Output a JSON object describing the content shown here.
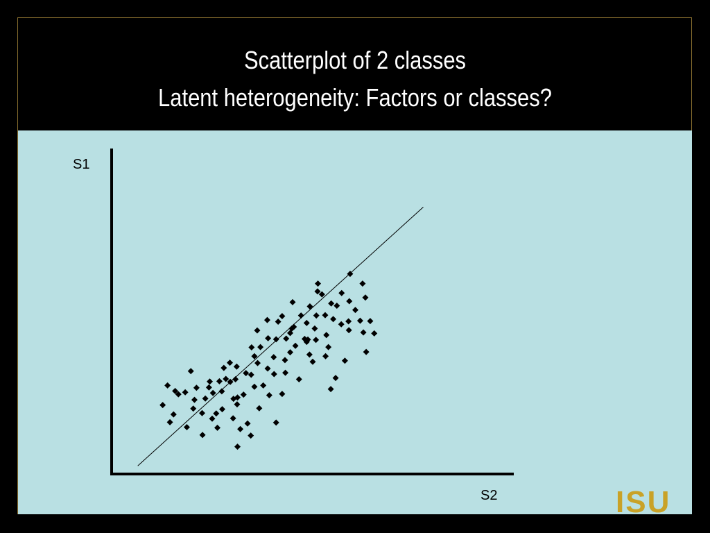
{
  "slide": {
    "title_line1": "Scatterplot of 2 classes",
    "title_line2": "Latent heterogeneity: Factors or classes?",
    "colors": {
      "background": "#000000",
      "panel": "#b9e0e3",
      "frame_border": "#8a7030",
      "title_text": "#ffffff",
      "points": "#000000"
    }
  },
  "chart_data": {
    "type": "scatter",
    "title": "",
    "xlabel": "S2",
    "ylabel": "S1",
    "xlim": [
      0,
      100
    ],
    "ylim": [
      0,
      100
    ],
    "grid": false,
    "legend": "none",
    "marker": "diamond",
    "points": [
      [
        12.7,
        21.2
      ],
      [
        14.5,
        15.9
      ],
      [
        15.4,
        18.3
      ],
      [
        13.9,
        27.2
      ],
      [
        15.8,
        25.5
      ],
      [
        16.6,
        24.5
      ],
      [
        18.7,
        14.4
      ],
      [
        18.3,
        25.1
      ],
      [
        20.6,
        22.8
      ],
      [
        20.3,
        20.1
      ],
      [
        21.1,
        26.5
      ],
      [
        19.7,
        31.6
      ],
      [
        22.5,
        18.7
      ],
      [
        24.2,
        26.6
      ],
      [
        23.3,
        23.2
      ],
      [
        22.6,
        12.0
      ],
      [
        25.2,
        24.9
      ],
      [
        24.4,
        28.4
      ],
      [
        26.0,
        18.6
      ],
      [
        25.0,
        17.0
      ],
      [
        26.8,
        28.5
      ],
      [
        26.3,
        14.2
      ],
      [
        28.4,
        29.2
      ],
      [
        27.9,
        32.6
      ],
      [
        27.5,
        19.9
      ],
      [
        29.5,
        28.3
      ],
      [
        30.2,
        17.1
      ],
      [
        30.3,
        23.1
      ],
      [
        27.4,
        25.4
      ],
      [
        31.2,
        21.4
      ],
      [
        29.4,
        34.2
      ],
      [
        31.1,
        33.0
      ],
      [
        31.3,
        8.4
      ],
      [
        30.8,
        29.1
      ],
      [
        32.0,
        13.8
      ],
      [
        32.8,
        24.4
      ],
      [
        31.3,
        23.5
      ],
      [
        33.8,
        15.5
      ],
      [
        33.4,
        31.0
      ],
      [
        34.6,
        11.8
      ],
      [
        34.7,
        30.5
      ],
      [
        35.5,
        36.2
      ],
      [
        34.8,
        38.9
      ],
      [
        35.5,
        26.8
      ],
      [
        36.2,
        44.1
      ],
      [
        36.7,
        20.2
      ],
      [
        36.3,
        34.1
      ],
      [
        37.0,
        39.0
      ],
      [
        37.7,
        27.2
      ],
      [
        38.8,
        32.4
      ],
      [
        38.9,
        41.7
      ],
      [
        39.2,
        24.2
      ],
      [
        38.7,
        47.3
      ],
      [
        40.4,
        30.7
      ],
      [
        40.3,
        35.9
      ],
      [
        40.9,
        15.8
      ],
      [
        40.9,
        41.4
      ],
      [
        41.4,
        46.8
      ],
      [
        42.4,
        24.6
      ],
      [
        42.4,
        48.5
      ],
      [
        43.1,
        35.0
      ],
      [
        43.4,
        41.6
      ],
      [
        43.2,
        31.1
      ],
      [
        44.4,
        37.4
      ],
      [
        44.8,
        44.7
      ],
      [
        45.0,
        52.8
      ],
      [
        44.4,
        43.3
      ],
      [
        45.3,
        45.2
      ],
      [
        45.7,
        39.4
      ],
      [
        46.6,
        29.1
      ],
      [
        47.1,
        48.7
      ],
      [
        48.0,
        41.5
      ],
      [
        48.5,
        40.6
      ],
      [
        48.5,
        46.4
      ],
      [
        49.3,
        51.5
      ],
      [
        48.8,
        41.3
      ],
      [
        49.2,
        36.7
      ],
      [
        50.0,
        34.5
      ],
      [
        50.5,
        44.7
      ],
      [
        50.9,
        48.7
      ],
      [
        50.8,
        41.2
      ],
      [
        51.3,
        58.5
      ],
      [
        51.2,
        56.1
      ],
      [
        52.3,
        55.2
      ],
      [
        53.2,
        36.2
      ],
      [
        53.1,
        48.8
      ],
      [
        53.4,
        42.7
      ],
      [
        53.9,
        39.0
      ],
      [
        54.6,
        52.4
      ],
      [
        54.5,
        26.1
      ],
      [
        55.1,
        47.6
      ],
      [
        55.7,
        29.5
      ],
      [
        56.0,
        51.7
      ],
      [
        57.1,
        46.0
      ],
      [
        57.2,
        55.6
      ],
      [
        58.0,
        34.8
      ],
      [
        59.1,
        53.1
      ],
      [
        59.3,
        61.5
      ],
      [
        58.9,
        46.9
      ],
      [
        59.0,
        44.2
      ],
      [
        60.6,
        50.4
      ],
      [
        61.8,
        47.1
      ],
      [
        62.6,
        43.5
      ],
      [
        62.4,
        58.5
      ],
      [
        63.1,
        54.2
      ],
      [
        63.3,
        37.5
      ],
      [
        64.3,
        47.0
      ],
      [
        65.3,
        43.2
      ]
    ],
    "trend_line": {
      "x": [
        6.5,
        77.5
      ],
      "y": [
        2.5,
        82.0
      ]
    }
  }
}
